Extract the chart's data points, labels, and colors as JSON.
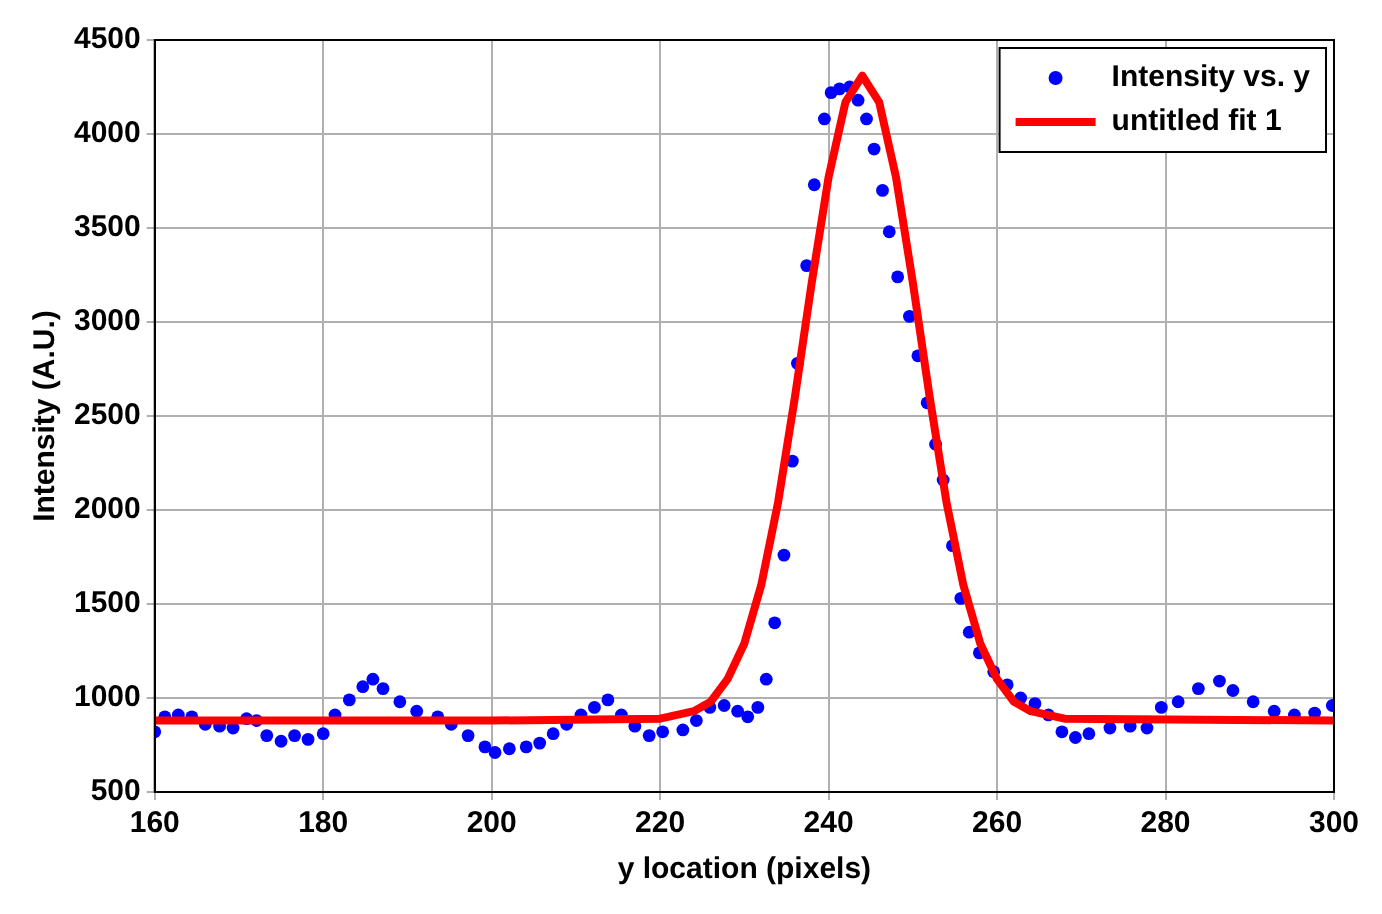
{
  "chart_data": {
    "type": "scatter",
    "xlabel": "y location (pixels)",
    "ylabel": "Intensity (A.U.)",
    "xlim": [
      160,
      300
    ],
    "xticks": [
      160,
      180,
      200,
      220,
      240,
      260,
      280,
      300
    ],
    "ylim": [
      500,
      4500
    ],
    "yticks": [
      500,
      1000,
      1500,
      2000,
      2500,
      3000,
      3500,
      4000,
      4500
    ],
    "grid": true,
    "legend": "top right",
    "series": [
      {
        "name": "Intensity vs. y",
        "marker": "circle",
        "color": "#0000ff",
        "x": [
          160,
          161.2,
          162.8,
          164.4,
          166,
          167.7,
          169.3,
          170.9,
          172.1,
          173.3,
          175,
          176.6,
          178.2,
          180,
          181.4,
          183.1,
          184.7,
          185.9,
          187.1,
          189.1,
          191.1,
          193.6,
          195.2,
          197.2,
          199.2,
          200.4,
          202.1,
          204.1,
          205.7,
          207.3,
          208.9,
          210.6,
          212.2,
          213.8,
          215.4,
          217,
          218.7,
          220.3,
          222.7,
          224.3,
          225.9,
          227.6,
          229.2,
          230.4,
          231.6,
          232.6,
          233.6,
          234.7,
          235.7,
          236.3,
          237.4,
          238.3,
          239.5,
          240.3,
          241.3,
          242.5,
          243.5,
          244.5,
          245.4,
          246.4,
          247.2,
          248.2,
          249.6,
          250.6,
          251.7,
          252.7,
          253.6,
          254.7,
          255.7,
          256.7,
          257.9,
          259.6,
          261.2,
          262.8,
          264.5,
          266.1,
          267.7,
          269.3,
          270.9,
          273.4,
          275.8,
          277.8,
          279.5,
          281.5,
          283.9,
          286.4,
          288,
          290.4,
          292.9,
          295.3,
          297.7,
          299.8
        ],
        "values": [
          820,
          900,
          910,
          900,
          860,
          850,
          840,
          890,
          880,
          800,
          770,
          800,
          780,
          810,
          910,
          990,
          1060,
          1100,
          1050,
          980,
          930,
          900,
          860,
          800,
          740,
          710,
          730,
          740,
          760,
          810,
          860,
          910,
          950,
          990,
          910,
          850,
          800,
          820,
          830,
          880,
          950,
          960,
          930,
          900,
          950,
          1100,
          1400,
          1760,
          2260,
          2780,
          3300,
          3730,
          4080,
          4220,
          4240,
          4250,
          4180,
          4080,
          3920,
          3700,
          3480,
          3240,
          3030,
          2820,
          2570,
          2350,
          2160,
          1810,
          1530,
          1350,
          1240,
          1140,
          1070,
          1000,
          970,
          910,
          820,
          790,
          810,
          840,
          850,
          840,
          950,
          980,
          1050,
          1090,
          1040,
          980,
          930,
          910,
          920,
          960
        ]
      },
      {
        "name": "untitled fit 1",
        "type": "line",
        "marker": "none",
        "color": "#ff0000",
        "x": [
          160,
          200,
          220,
          224,
          226,
          228,
          230,
          232,
          234,
          236,
          238,
          240,
          242,
          244,
          246,
          248,
          250,
          252,
          254,
          256,
          258,
          260,
          262,
          264,
          268,
          300
        ],
        "values": [
          880,
          880,
          890,
          930,
          980,
          1100,
          1290,
          1600,
          2040,
          2600,
          3210,
          3770,
          4170,
          4310,
          4170,
          3770,
          3210,
          2600,
          2040,
          1600,
          1290,
          1100,
          980,
          930,
          890,
          880
        ]
      }
    ]
  }
}
